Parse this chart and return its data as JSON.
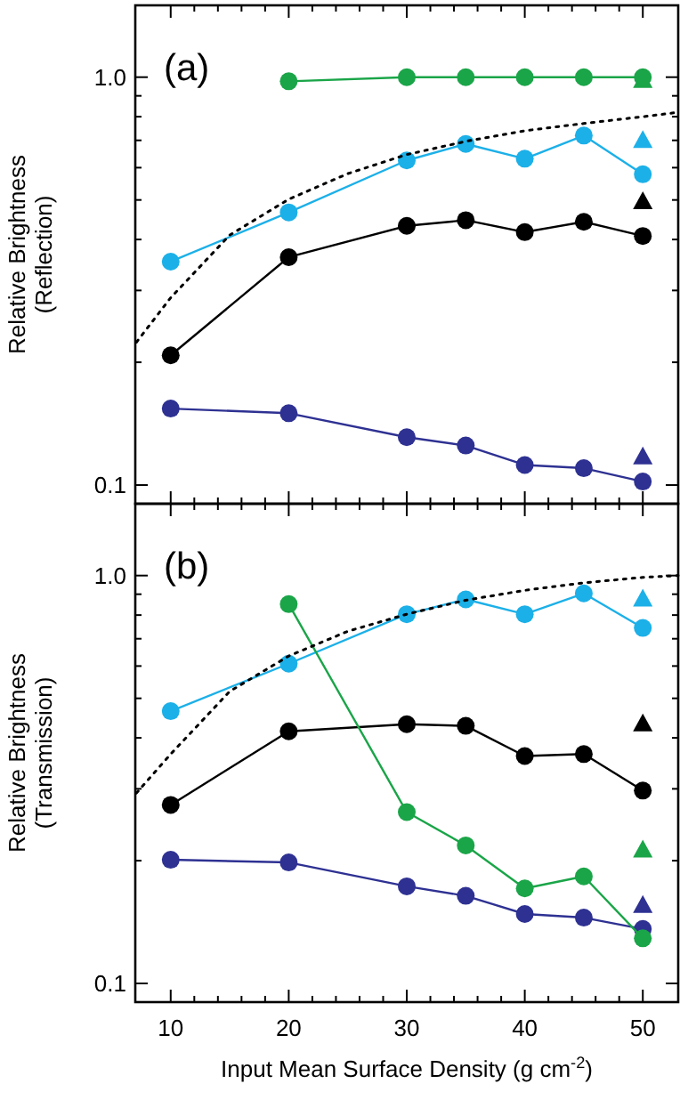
{
  "chart_data": [
    {
      "type": "line",
      "ylabel": "Relative Brightness\n(Reflection)",
      "annotations": [
        "(a)"
      ],
      "log": "y",
      "grid": false,
      "tick_labels": "y",
      "x": [
        10,
        20,
        30,
        35,
        40,
        45,
        50
      ],
      "xlim": [
        7,
        53
      ],
      "ylim": [
        0.09,
        1.5
      ],
      "xticks": [
        10,
        {
          "value": 12,
          "label": null
        },
        {
          "value": 14,
          "label": null
        },
        {
          "value": 16,
          "label": null
        },
        {
          "value": 18,
          "label": null
        },
        20,
        {
          "value": 22,
          "label": null
        },
        {
          "value": 24,
          "label": null
        },
        {
          "value": 26,
          "label": null
        },
        {
          "value": 28,
          "label": null
        },
        30,
        {
          "value": 32,
          "label": null
        },
        {
          "value": 34,
          "label": null
        },
        {
          "value": 36,
          "label": null
        },
        {
          "value": 38,
          "label": null
        },
        40,
        {
          "value": 42,
          "label": null
        },
        {
          "value": 44,
          "label": null
        },
        {
          "value": 46,
          "label": null
        },
        {
          "value": 48,
          "label": null
        },
        50
      ],
      "yticks": [
        0.1,
        {
          "value": 0.2,
          "label": null
        },
        {
          "value": 0.3,
          "label": null
        },
        {
          "value": 0.4,
          "label": null
        },
        {
          "value": 0.5,
          "label": null
        },
        {
          "value": 0.6,
          "label": null
        },
        {
          "value": 0.7,
          "label": null
        },
        {
          "value": 0.8,
          "label": null
        },
        {
          "value": 0.9,
          "label": null
        },
        {
          "value": 1,
          "label": "1.0"
        }
      ],
      "series": [
        {
          "color": "#1aa548",
          "marker": "circle",
          "values": [
            null,
            0.977,
            1.0,
            1.0,
            1.0,
            1.0,
            1.0
          ]
        },
        {
          "color": "#1cb0e8",
          "marker": "circle",
          "values": [
            0.353,
            0.466,
            0.625,
            0.686,
            0.631,
            0.719,
            0.578
          ]
        },
        {
          "color": "#000000",
          "marker": "circle",
          "values": [
            0.208,
            0.362,
            0.432,
            0.446,
            0.417,
            0.442,
            0.408
          ]
        },
        {
          "color": "#2e3192",
          "marker": "circle",
          "values": [
            0.154,
            0.15,
            0.131,
            0.125,
            0.112,
            0.11,
            0.102
          ]
        },
        {
          "type": "scatter",
          "color": "#1aa548",
          "marker": "triangle",
          "x": [
            50
          ],
          "values": [
            0.98
          ]
        },
        {
          "type": "scatter",
          "color": "#1cb0e8",
          "marker": "triangle",
          "x": [
            50
          ],
          "values": [
            0.698
          ]
        },
        {
          "type": "scatter",
          "color": "#000000",
          "marker": "triangle",
          "x": [
            50
          ],
          "values": [
            0.494
          ]
        },
        {
          "type": "scatter",
          "color": "#2e3192",
          "marker": "triangle",
          "x": [
            50
          ],
          "values": [
            0.117
          ]
        },
        {
          "type": "line",
          "color": "#000000",
          "marker": "none",
          "line_style": "dotted",
          "x": [
            7.1,
            10,
            15,
            20,
            25,
            30,
            35,
            40,
            45,
            50,
            53
          ],
          "values": [
            0.224,
            0.288,
            0.41,
            0.502,
            0.58,
            0.646,
            0.696,
            0.739,
            0.77,
            0.8,
            0.82
          ]
        }
      ]
    },
    {
      "type": "line",
      "ylabel": "Relative Brightness\n(Transmission)",
      "xlabel": "Input Mean Surface Density (g cm$^{-2}$)",
      "annotations": [
        "(b)"
      ],
      "log": "y",
      "grid": false,
      "x": [
        10,
        20,
        30,
        35,
        40,
        45,
        50
      ],
      "xlim": [
        7,
        53
      ],
      "ylim": [
        0.09,
        1.5
      ],
      "xticks": [
        10,
        {
          "value": 12,
          "label": null
        },
        {
          "value": 14,
          "label": null
        },
        {
          "value": 16,
          "label": null
        },
        {
          "value": 18,
          "label": null
        },
        20,
        {
          "value": 22,
          "label": null
        },
        {
          "value": 24,
          "label": null
        },
        {
          "value": 26,
          "label": null
        },
        {
          "value": 28,
          "label": null
        },
        30,
        {
          "value": 32,
          "label": null
        },
        {
          "value": 34,
          "label": null
        },
        {
          "value": 36,
          "label": null
        },
        {
          "value": 38,
          "label": null
        },
        40,
        {
          "value": 42,
          "label": null
        },
        {
          "value": 44,
          "label": null
        },
        {
          "value": 46,
          "label": null
        },
        {
          "value": 48,
          "label": null
        },
        50
      ],
      "yticks": [
        0.1,
        {
          "value": 0.2,
          "label": null
        },
        {
          "value": 0.3,
          "label": null
        },
        {
          "value": 0.4,
          "label": null
        },
        {
          "value": 0.5,
          "label": null
        },
        {
          "value": 0.6,
          "label": null
        },
        {
          "value": 0.7,
          "label": null
        },
        {
          "value": 0.8,
          "label": null
        },
        {
          "value": 0.9,
          "label": null
        },
        {
          "value": 1,
          "label": "1.0"
        }
      ],
      "series": [
        {
          "color": "#1cb0e8",
          "marker": "circle",
          "values": [
            0.465,
            0.608,
            0.804,
            0.874,
            0.804,
            0.904,
            0.744
          ]
        },
        {
          "color": "#000000",
          "marker": "circle",
          "values": [
            0.274,
            0.415,
            0.432,
            0.428,
            0.361,
            0.365,
            0.297
          ]
        },
        {
          "color": "#2e3192",
          "marker": "circle",
          "values": [
            0.201,
            0.198,
            0.173,
            0.164,
            0.148,
            0.145,
            0.136
          ]
        },
        {
          "color": "#1aa548",
          "marker": "circle",
          "values": [
            null,
            0.851,
            0.263,
            0.218,
            0.171,
            0.183,
            0.129
          ]
        },
        {
          "type": "scatter",
          "color": "#1cb0e8",
          "marker": "triangle",
          "x": [
            50
          ],
          "values": [
            0.874
          ]
        },
        {
          "type": "scatter",
          "color": "#000000",
          "marker": "triangle",
          "x": [
            50
          ],
          "values": [
            0.432
          ]
        },
        {
          "type": "scatter",
          "color": "#1aa548",
          "marker": "triangle",
          "x": [
            50
          ],
          "values": [
            0.212
          ]
        },
        {
          "type": "scatter",
          "color": "#2e3192",
          "marker": "triangle",
          "x": [
            50
          ],
          "values": [
            0.155
          ]
        },
        {
          "type": "line",
          "color": "#000000",
          "marker": "none",
          "line_style": "dotted",
          "x": [
            7.1,
            10,
            15,
            20,
            25,
            30,
            35,
            40,
            45,
            50,
            53
          ],
          "values": [
            0.293,
            0.365,
            0.52,
            0.635,
            0.73,
            0.804,
            0.87,
            0.92,
            0.96,
            0.99,
            1.0
          ]
        }
      ]
    }
  ]
}
